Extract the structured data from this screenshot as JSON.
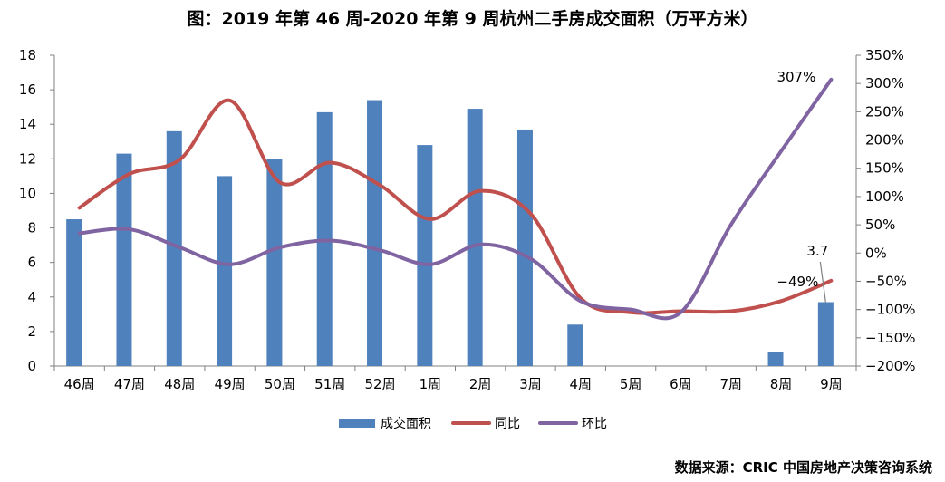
{
  "title": "图：2019 年第 46 周-2020 年第 9 周杭州二手房成交面积（万平方米）",
  "source": "数据来源：CRIC 中国房地产决策咨询系统",
  "chart_data": {
    "type": "bar",
    "categories": [
      "46周",
      "47周",
      "48周",
      "49周",
      "50周",
      "51周",
      "52周",
      "1周",
      "2周",
      "3周",
      "4周",
      "5周",
      "6周",
      "7周",
      "8周",
      "9周"
    ],
    "series": [
      {
        "name": "成交面积",
        "type": "bar",
        "axis": "left",
        "color": "#4F81BD",
        "values": [
          8.5,
          12.3,
          13.6,
          11.0,
          12.0,
          14.7,
          15.4,
          12.8,
          14.9,
          13.7,
          2.4,
          0,
          0,
          0,
          0.8,
          3.7
        ]
      },
      {
        "name": "同比",
        "type": "line",
        "axis": "right",
        "color": "#C0504D",
        "values": [
          80,
          140,
          165,
          270,
          125,
          160,
          120,
          60,
          110,
          70,
          -80,
          -105,
          -103,
          -103,
          -85,
          -49
        ]
      },
      {
        "name": "环比",
        "type": "line",
        "axis": "right",
        "color": "#8064A2",
        "values": [
          35,
          42,
          10,
          -20,
          10,
          22,
          5,
          -20,
          15,
          -10,
          -85,
          -100,
          -105,
          50,
          180,
          307
        ]
      }
    ],
    "yleft": {
      "min": 0,
      "max": 18,
      "step": 2,
      "ticks": [
        "0",
        "2",
        "4",
        "6",
        "8",
        "10",
        "12",
        "14",
        "16",
        "18"
      ]
    },
    "yright": {
      "min": -200,
      "max": 350,
      "step": 50,
      "ticks": [
        "-200%",
        "-150%",
        "-100%",
        "-50%",
        "0%",
        "50%",
        "100%",
        "150%",
        "200%",
        "250%",
        "300%",
        "350%"
      ]
    },
    "annotations": [
      {
        "text": "307%",
        "series": 2,
        "index": 15
      },
      {
        "text": "-49%",
        "series": 1,
        "index": 15
      },
      {
        "text": "3.7",
        "series": 0,
        "index": 15
      }
    ],
    "legend_position": "bottom",
    "grid": false
  }
}
